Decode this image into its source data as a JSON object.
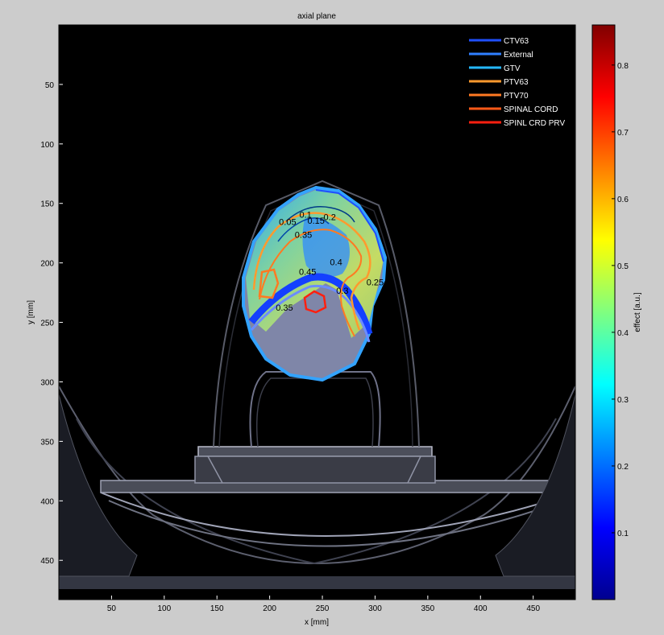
{
  "chart_data": {
    "type": "heatmap",
    "title": "axial plane",
    "xlabel": "x [mm]",
    "ylabel": "y [mm]",
    "xlim": [
      0,
      490
    ],
    "ylim": [
      0,
      483
    ],
    "y_reversed": true,
    "x_ticks": [
      50,
      100,
      150,
      200,
      250,
      300,
      350,
      400,
      450
    ],
    "y_ticks": [
      50,
      100,
      150,
      200,
      250,
      300,
      350,
      400,
      450
    ],
    "colorbar": {
      "label": "effect [a.u.]",
      "range": [
        0,
        0.86
      ],
      "ticks": [
        0.1,
        0.2,
        0.3,
        0.4,
        0.5,
        0.6,
        0.7,
        0.8
      ],
      "colormap": "jet"
    },
    "legend": {
      "placement": "top-right",
      "entries": [
        {
          "label": "CTV63",
          "color": "#1f4fff"
        },
        {
          "label": "External",
          "color": "#2f7fff"
        },
        {
          "label": "GTV",
          "color": "#25b8ff"
        },
        {
          "label": "PTV63",
          "color": "#ff9a2e"
        },
        {
          "label": "PTV70",
          "color": "#ff7a22"
        },
        {
          "label": "SPINAL CORD",
          "color": "#ff5a18"
        },
        {
          "label": "SPINL CRD PRV",
          "color": "#ff2010"
        }
      ]
    },
    "contour_labels": [
      {
        "text": "0.05",
        "x": 217,
        "y": 168
      },
      {
        "text": "0.1",
        "x": 234,
        "y": 162
      },
      {
        "text": "0.15",
        "x": 244,
        "y": 167
      },
      {
        "text": "0.2",
        "x": 257,
        "y": 164
      },
      {
        "text": "0.35",
        "x": 232,
        "y": 179
      },
      {
        "text": "0.4",
        "x": 263,
        "y": 202
      },
      {
        "text": "0.45",
        "x": 236,
        "y": 210
      },
      {
        "text": "0.3",
        "x": 269,
        "y": 226
      },
      {
        "text": "0.25",
        "x": 300,
        "y": 219
      },
      {
        "text": "0.35",
        "x": 214,
        "y": 240
      }
    ]
  }
}
